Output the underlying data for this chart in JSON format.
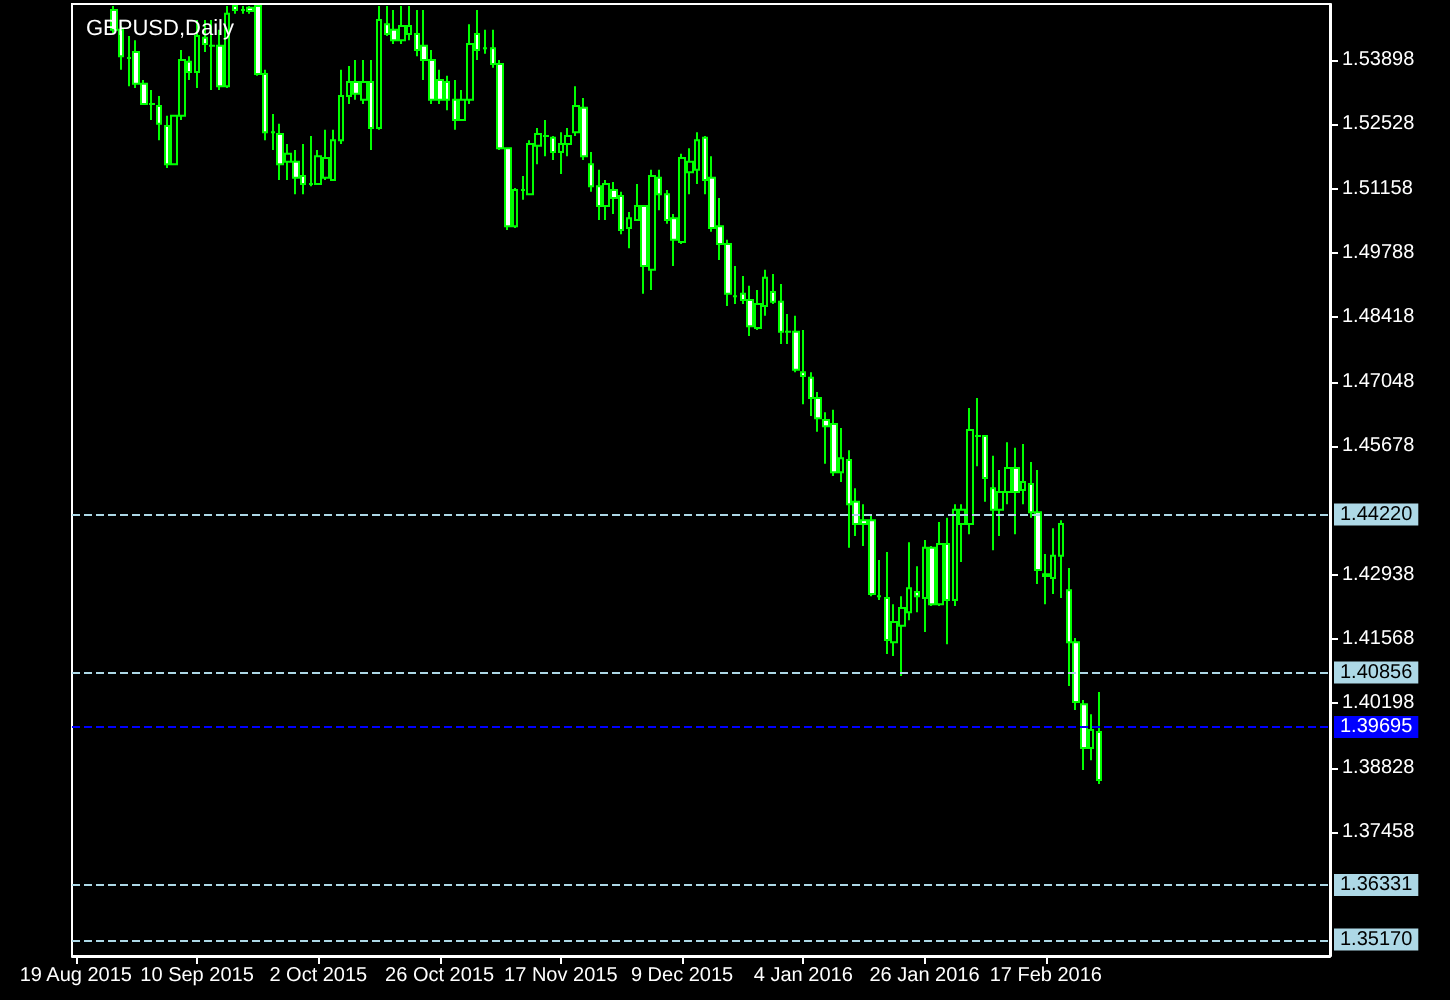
{
  "chart_data": {
    "type": "candlestick",
    "title": "GBPUSD,Daily",
    "color": "#00ff00",
    "categories": [
      "19 Aug 2015",
      null,
      null,
      null,
      null,
      null,
      null,
      null,
      null,
      null,
      null,
      null,
      null,
      null,
      null,
      null,
      "10 Sep 2015",
      null,
      null,
      null,
      null,
      null,
      null,
      null,
      null,
      null,
      null,
      null,
      null,
      null,
      null,
      null,
      "2 Oct 2015",
      null,
      null,
      null,
      null,
      null,
      null,
      null,
      null,
      null,
      null,
      null,
      null,
      null,
      null,
      null,
      "26 Oct 2015",
      null,
      null,
      null,
      null,
      null,
      null,
      null,
      null,
      null,
      null,
      null,
      null,
      null,
      null,
      null,
      "17 Nov 2015",
      null,
      null,
      null,
      null,
      null,
      null,
      null,
      null,
      null,
      null,
      null,
      null,
      null,
      null,
      null,
      "9 Dec 2015",
      null,
      null,
      null,
      null,
      null,
      null,
      null,
      null,
      null,
      null,
      null,
      null,
      null,
      null,
      null,
      "4 Jan 2016",
      null,
      null,
      null,
      null,
      null,
      null,
      null,
      null,
      null,
      null,
      null,
      null,
      null,
      null,
      null,
      "26 Jan 2016",
      null,
      null,
      null,
      null,
      null,
      null,
      null,
      null,
      null,
      null,
      null,
      null,
      null,
      null,
      null,
      "17 Feb 2016",
      null,
      null,
      null,
      null,
      null,
      null,
      null,
      null,
      null,
      null,
      null,
      null,
      null,
      null,
      null,
      null,
      null,
      null,
      null,
      null,
      null,
      null,
      null,
      null,
      null,
      null,
      null,
      null,
      null,
      null,
      null,
      null,
      null,
      null,
      null,
      null,
      null
    ],
    "ohlc": [
      null,
      null,
      null,
      null,
      null,
      [
        1.5496,
        1.5505,
        1.5445,
        1.5454
      ],
      [
        1.5454,
        1.5462,
        1.5369,
        1.5398
      ],
      [
        1.5394,
        1.5441,
        1.5334,
        1.5394
      ],
      [
        1.5407,
        1.5432,
        1.533,
        1.5339
      ],
      [
        1.5339,
        1.5347,
        1.5296,
        1.5296
      ],
      [
        1.5296,
        1.5326,
        1.5262,
        1.5296
      ],
      [
        1.5292,
        1.5313,
        1.5219,
        1.5254
      ],
      [
        1.5249,
        1.5271,
        1.516,
        1.5168
      ],
      [
        1.5168,
        1.5271,
        1.5168,
        1.5271
      ],
      [
        1.5271,
        1.5411,
        1.5262,
        1.539
      ],
      [
        1.5386,
        1.5398,
        1.5347,
        1.5364
      ],
      [
        1.5364,
        1.5475,
        1.533,
        1.5441
      ],
      [
        1.5437,
        1.5475,
        1.5407,
        1.5424
      ],
      [
        1.542,
        1.5475,
        1.5326,
        1.542
      ],
      [
        1.542,
        1.5454,
        1.5326,
        1.5334
      ],
      [
        1.5334,
        1.5505,
        1.533,
        1.5488
      ],
      [
        1.5505,
        1.5505,
        1.5488,
        1.5496
      ],
      [
        1.5496,
        1.5505,
        1.5488,
        1.5496
      ],
      [
        1.5501,
        1.5505,
        1.5488,
        1.5494
      ],
      [
        1.5505,
        1.5505,
        1.5356,
        1.536
      ],
      [
        1.536,
        1.5369,
        1.5219,
        1.5236
      ],
      [
        1.5236,
        1.5275,
        1.5198,
        1.5236
      ],
      [
        1.5232,
        1.5254,
        1.5134,
        1.5168
      ],
      [
        1.5173,
        1.5211,
        1.5134,
        1.519
      ],
      [
        1.5173,
        1.5198,
        1.5104,
        1.5139
      ],
      [
        1.5143,
        1.5211,
        1.5104,
        1.5126
      ],
      [
        1.5126,
        1.5228,
        1.5121,
        1.5126
      ],
      [
        1.5126,
        1.5198,
        1.5126,
        1.5185
      ],
      [
        1.5139,
        1.5241,
        1.5134,
        1.5181
      ],
      [
        1.5134,
        1.5241,
        1.5134,
        1.5219
      ],
      [
        1.5219,
        1.5369,
        1.5211,
        1.5313
      ],
      [
        1.5313,
        1.5377,
        1.5296,
        1.5343
      ],
      [
        1.5343,
        1.539,
        1.5305,
        1.5318
      ],
      [
        1.5305,
        1.539,
        1.5296,
        1.5343
      ],
      [
        1.5343,
        1.539,
        1.5198,
        1.5245
      ],
      [
        1.5245,
        1.5505,
        1.5241,
        1.5475
      ],
      [
        1.5466,
        1.5505,
        1.5441,
        1.5445
      ],
      [
        1.5454,
        1.5496,
        1.5424,
        1.5432
      ],
      [
        1.5432,
        1.5505,
        1.5424,
        1.5462
      ],
      [
        1.5445,
        1.5505,
        1.5432,
        1.5462
      ],
      [
        1.5445,
        1.5496,
        1.5398,
        1.5411
      ],
      [
        1.542,
        1.5496,
        1.5347,
        1.539
      ],
      [
        1.539,
        1.5411,
        1.5296,
        1.5305
      ],
      [
        1.5347,
        1.5369,
        1.5296,
        1.5305
      ],
      [
        1.5343,
        1.5356,
        1.5283,
        1.5305
      ],
      [
        1.5305,
        1.5347,
        1.5241,
        1.5262
      ],
      [
        1.5262,
        1.5326,
        1.5262,
        1.5305
      ],
      [
        1.5305,
        1.5466,
        1.5296,
        1.5424
      ],
      [
        1.5445,
        1.5496,
        1.539,
        1.5411
      ],
      [
        1.5415,
        1.5454,
        1.5403,
        1.5415
      ],
      [
        1.5415,
        1.5454,
        1.5373,
        1.5381
      ],
      [
        1.5381,
        1.539,
        1.5198,
        1.5202
      ],
      [
        1.5202,
        1.5202,
        1.5028,
        1.5036
      ],
      [
        1.5036,
        1.5117,
        1.5032,
        1.5113
      ],
      [
        1.5113,
        1.5143,
        1.5092,
        1.5113
      ],
      [
        1.5104,
        1.5219,
        1.5104,
        1.5211
      ],
      [
        1.5207,
        1.5245,
        1.5168,
        1.5232
      ],
      [
        1.5228,
        1.5262,
        1.5185,
        1.5228
      ],
      [
        1.5224,
        1.5228,
        1.5177,
        1.5194
      ],
      [
        1.5194,
        1.5236,
        1.5147,
        1.5211
      ],
      [
        1.5211,
        1.5245,
        1.5185,
        1.5228
      ],
      [
        1.5236,
        1.5334,
        1.5228,
        1.5292
      ],
      [
        1.5288,
        1.5309,
        1.5177,
        1.5185
      ],
      [
        1.5168,
        1.5194,
        1.5109,
        1.5121
      ],
      [
        1.5121,
        1.5156,
        1.5049,
        1.5079
      ],
      [
        1.5079,
        1.5134,
        1.5049,
        1.5126
      ],
      [
        1.5113,
        1.513,
        1.5062,
        1.5096
      ],
      [
        1.51,
        1.5109,
        1.5019,
        1.5028
      ],
      [
        1.5032,
        1.5066,
        1.4989,
        1.5053
      ],
      [
        1.5049,
        1.5126,
        1.5049,
        1.5079
      ],
      [
        1.5079,
        1.5079,
        1.4892,
        1.4951
      ],
      [
        1.4943,
        1.5156,
        1.49,
        1.5143
      ],
      [
        1.5139,
        1.5156,
        1.507,
        1.5104
      ],
      [
        1.5104,
        1.5113,
        1.5041,
        1.5049
      ],
      [
        1.5053,
        1.5062,
        1.4951,
        1.5007
      ],
      [
        1.5002,
        1.519,
        1.4998,
        1.5181
      ],
      [
        1.5151,
        1.5202,
        1.5104,
        1.5173
      ],
      [
        1.5156,
        1.5236,
        1.5126,
        1.5219
      ],
      [
        1.5224,
        1.5228,
        1.5104,
        1.5134
      ],
      [
        1.5139,
        1.5185,
        1.5024,
        1.5032
      ],
      [
        1.5036,
        1.5096,
        1.4964,
        1.4998
      ],
      [
        1.4998,
        1.5007,
        1.4866,
        1.4892
      ],
      [
        1.4887,
        1.4951,
        1.487,
        1.4887
      ],
      [
        1.4892,
        1.493,
        1.487,
        1.4879
      ],
      [
        1.4879,
        1.4909,
        1.4802,
        1.4823
      ],
      [
        1.4819,
        1.49,
        1.4815,
        1.487
      ],
      [
        1.4866,
        1.4943,
        1.4845,
        1.4926
      ],
      [
        1.4896,
        1.4934,
        1.487,
        1.4875
      ],
      [
        1.4875,
        1.4913,
        1.4785,
        1.4811
      ],
      [
        1.4811,
        1.4849,
        1.4785,
        1.4811
      ],
      [
        1.4811,
        1.4845,
        1.4725,
        1.473
      ],
      [
        1.4725,
        1.4815,
        1.4657,
        1.4717
      ],
      [
        1.4713,
        1.4725,
        1.4632,
        1.467
      ],
      [
        1.467,
        1.4683,
        1.4598,
        1.4627
      ],
      [
        1.4623,
        1.464,
        1.453,
        1.461
      ],
      [
        1.4615,
        1.4645,
        1.4504,
        1.4512
      ],
      [
        1.4512,
        1.4606,
        1.4491,
        1.4542
      ],
      [
        1.4538,
        1.4559,
        1.4351,
        1.4444
      ],
      [
        1.4449,
        1.4478,
        1.4376,
        1.4402
      ],
      [
        1.441,
        1.4444,
        1.4355,
        1.4402
      ],
      [
        1.441,
        1.4423,
        1.4248,
        1.4253
      ],
      [
        1.4248,
        1.4325,
        1.424,
        1.4248
      ],
      [
        1.4244,
        1.4342,
        1.4125,
        1.4155
      ],
      [
        1.415,
        1.4231,
        1.4121,
        1.4193
      ],
      [
        1.4185,
        1.4248,
        1.4078,
        1.4223
      ],
      [
        1.4214,
        1.4363,
        1.4197,
        1.4265
      ],
      [
        1.4257,
        1.4312,
        1.4214,
        1.4248
      ],
      [
        1.4244,
        1.4368,
        1.4172,
        1.4351
      ],
      [
        1.4351,
        1.4355,
        1.4227,
        1.4231
      ],
      [
        1.4231,
        1.4406,
        1.4227,
        1.4359
      ],
      [
        1.4359,
        1.4415,
        1.4146,
        1.424
      ],
      [
        1.424,
        1.4444,
        1.4227,
        1.4432
      ],
      [
        1.4402,
        1.4444,
        1.4321,
        1.4432
      ],
      [
        1.4402,
        1.4649,
        1.438,
        1.4602
      ],
      [
        1.4589,
        1.467,
        1.4525,
        1.4589
      ],
      [
        1.4589,
        1.4589,
        1.4449,
        1.45
      ],
      [
        1.4478,
        1.4547,
        1.4346,
        1.4432
      ],
      [
        1.4432,
        1.4517,
        1.4376,
        1.447
      ],
      [
        1.447,
        1.4576,
        1.4444,
        1.4521
      ],
      [
        1.4521,
        1.4564,
        1.438,
        1.447
      ],
      [
        1.4474,
        1.4572,
        1.4444,
        1.4491
      ],
      [
        1.4487,
        1.4534,
        1.4415,
        1.4427
      ],
      [
        1.4427,
        1.4517,
        1.4274,
        1.4304
      ],
      [
        1.4295,
        1.4338,
        1.4231,
        1.4291
      ],
      [
        1.4287,
        1.4393,
        1.4253,
        1.4334
      ],
      [
        1.4334,
        1.441,
        1.4244,
        1.4402
      ],
      [
        1.4261,
        1.4308,
        1.4057,
        1.415
      ],
      [
        1.415,
        1.4159,
        1.4006,
        1.4023
      ],
      [
        1.4018,
        1.4027,
        1.3878,
        1.3925
      ],
      [
        1.3925,
        1.3997,
        1.3899,
        1.3963
      ],
      [
        1.3959,
        1.4044,
        1.3848,
        1.3857
      ],
      null,
      null,
      null,
      null,
      null,
      null,
      null,
      null,
      null,
      null,
      null,
      null,
      null,
      null,
      null,
      null,
      null,
      null,
      null,
      null,
      null,
      null,
      null,
      null,
      null,
      null,
      null,
      null,
      null,
      null
    ],
    "ylim": [
      1.3482,
      1.5509
    ],
    "yticks": [
      1.53898,
      1.52528,
      1.51158,
      1.49788,
      1.48418,
      1.47048,
      1.45678,
      1.42938,
      1.41568,
      1.40198,
      1.38828,
      1.37458
    ],
    "grid": false,
    "line_style": "dashed",
    "ref_lines": [
      {
        "axis": "y",
        "value": 1.4422,
        "label": "1.44220",
        "color": "#add8e6"
      },
      {
        "axis": "y",
        "value": 1.40856,
        "label": "1.40856",
        "color": "#add8e6"
      },
      {
        "axis": "y",
        "value": 1.39695,
        "label": "1.39695",
        "color": "#0000ff"
      },
      {
        "axis": "y",
        "value": 1.36331,
        "label": "1.36331",
        "color": "#add8e6"
      },
      {
        "axis": "y",
        "value": 1.3517,
        "label": "1.35170",
        "color": "#add8e6"
      }
    ]
  }
}
